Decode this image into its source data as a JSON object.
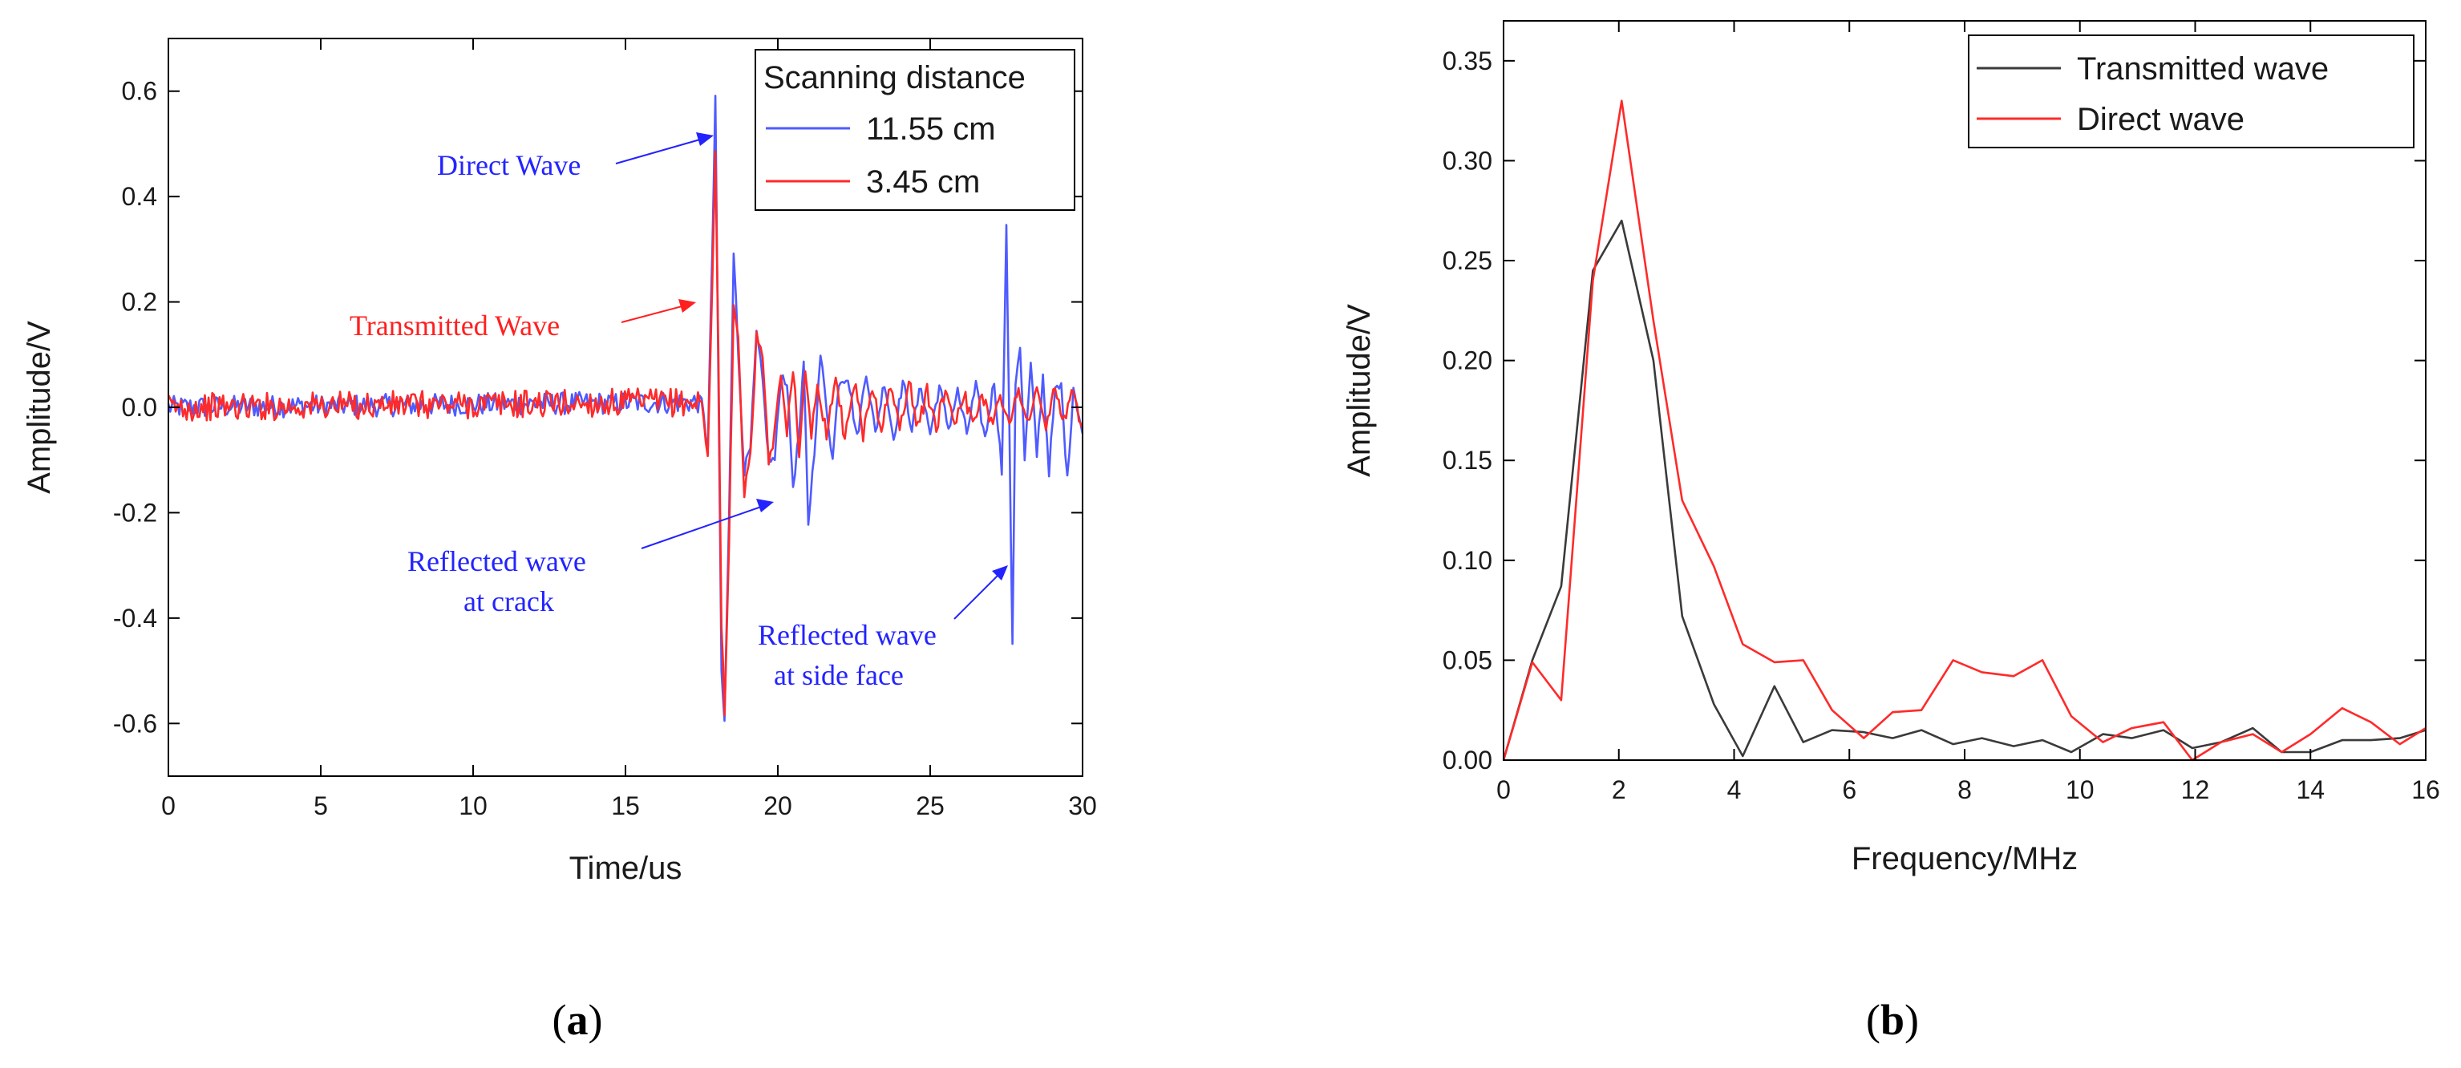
{
  "panels": {
    "a": {
      "label": "(a)",
      "label_open": "(",
      "label_letter": "a",
      "label_close": ")"
    },
    "b": {
      "label": "(b)",
      "label_open": "(",
      "label_letter": "b",
      "label_close": ")"
    }
  },
  "colors": {
    "blue": "#4f5bff",
    "red": "#ff2a2a",
    "dark": "#3a3a3a",
    "axis": "#000000",
    "annot_blue": "#2323ff",
    "annot_red": "#ff2020"
  },
  "chart_data": [
    {
      "id": "a",
      "type": "line",
      "title": "",
      "xlabel": "Time/us",
      "ylabel": "Amplitude/V",
      "xlim": [
        0,
        30
      ],
      "ylim": [
        -0.7,
        0.7
      ],
      "xticks": [
        0,
        5,
        10,
        15,
        20,
        25,
        30
      ],
      "xtick_labels": [
        "0",
        "5",
        "10",
        "15",
        "20",
        "25",
        "30"
      ],
      "yticks": [
        0.6,
        0.4,
        0.2,
        0.0,
        -0.2,
        -0.4,
        -0.6
      ],
      "ytick_labels": [
        "0.6",
        "0.4",
        "0.2",
        "0.0",
        "-0.2",
        "-0.4",
        "-0.6"
      ],
      "legend": {
        "title": "Scanning distance",
        "position": "top-right",
        "entries": [
          "11.55 cm",
          "3.45 cm"
        ]
      },
      "series": [
        {
          "name": "11.55 cm",
          "color": "#4f5bff",
          "noise_amplitude": 0.012,
          "x": [
            0,
            17.5,
            17.7,
            17.85,
            17.95,
            18.05,
            18.15,
            18.25,
            18.4,
            18.55,
            18.7,
            18.9,
            19.1,
            19.3,
            19.5,
            19.7,
            19.9,
            20.1,
            20.3,
            20.5,
            20.7,
            20.85,
            21.0,
            21.2,
            21.4,
            21.6,
            21.8,
            22.0,
            22.3,
            22.6,
            22.9,
            23.2,
            23.5,
            23.8,
            24.1,
            24.4,
            24.7,
            25.0,
            25.3,
            25.6,
            25.9,
            26.2,
            26.5,
            26.8,
            27.1,
            27.35,
            27.5,
            27.6,
            27.7,
            27.8,
            27.95,
            28.1,
            28.3,
            28.5,
            28.7,
            28.9,
            29.1,
            29.3,
            29.5,
            29.7,
            30
          ],
          "y": [
            0,
            0.01,
            -0.08,
            0.3,
            0.58,
            0.05,
            -0.5,
            -0.6,
            -0.2,
            0.3,
            0.1,
            -0.12,
            -0.08,
            0.14,
            0.05,
            -0.1,
            -0.1,
            0.06,
            0.05,
            -0.15,
            -0.05,
            0.08,
            -0.22,
            -0.08,
            0.1,
            0.0,
            -0.1,
            0.05,
            0.06,
            -0.06,
            0.07,
            -0.05,
            0.05,
            -0.06,
            0.05,
            -0.04,
            0.04,
            -0.05,
            0.04,
            -0.04,
            0.03,
            -0.05,
            0.04,
            -0.06,
            0.05,
            -0.12,
            0.34,
            -0.05,
            -0.46,
            0.05,
            0.12,
            -0.1,
            0.08,
            -0.09,
            0.06,
            -0.12,
            0.03,
            0.04,
            -0.14,
            0.04,
            -0.05
          ]
        },
        {
          "name": "3.45 cm",
          "color": "#ff2a2a",
          "noise_amplitude": 0.015,
          "x": [
            0,
            17.5,
            17.7,
            17.85,
            17.95,
            18.05,
            18.15,
            18.25,
            18.4,
            18.55,
            18.7,
            18.9,
            19.1,
            19.3,
            19.5,
            19.7,
            19.9,
            20.1,
            20.3,
            20.5,
            20.7,
            20.9,
            21.1,
            21.3,
            21.6,
            21.9,
            22.2,
            22.5,
            22.8,
            23.1,
            23.4,
            23.7,
            24.0,
            24.3,
            24.6,
            24.9,
            25.2,
            25.5,
            25.8,
            26.1,
            26.4,
            26.7,
            27.0,
            27.3,
            27.6,
            27.9,
            28.2,
            28.5,
            28.8,
            29.1,
            29.4,
            29.7,
            30
          ],
          "y": [
            0,
            0.01,
            -0.1,
            0.25,
            0.48,
            0.1,
            -0.42,
            -0.57,
            -0.25,
            0.2,
            0.12,
            -0.16,
            -0.1,
            0.14,
            0.08,
            -0.1,
            -0.05,
            0.06,
            -0.04,
            0.08,
            -0.08,
            0.06,
            -0.05,
            0.05,
            -0.05,
            0.06,
            -0.06,
            0.05,
            -0.05,
            0.04,
            -0.04,
            0.04,
            -0.04,
            0.05,
            -0.04,
            0.03,
            -0.04,
            0.04,
            -0.03,
            0.03,
            -0.04,
            0.03,
            -0.03,
            0.03,
            -0.04,
            0.04,
            -0.03,
            0.03,
            -0.04,
            0.04,
            -0.03,
            0.03,
            -0.04
          ]
        }
      ],
      "annotations": [
        {
          "text": "Direct Wave",
          "color": "blue"
        },
        {
          "text": "Transmitted Wave",
          "color": "red"
        },
        {
          "text_lines": [
            "Reflected wave",
            "at crack"
          ],
          "color": "blue"
        },
        {
          "text_lines": [
            "Reflected wave",
            "at side face"
          ],
          "color": "blue"
        }
      ]
    },
    {
      "id": "b",
      "type": "line",
      "title": "",
      "xlabel": "Frequency/MHz",
      "ylabel": "Amplitude/V",
      "xlim": [
        0,
        16
      ],
      "ylim": [
        0,
        0.37
      ],
      "xticks": [
        0,
        2,
        4,
        6,
        8,
        10,
        12,
        14,
        16
      ],
      "xtick_labels": [
        "0",
        "2",
        "4",
        "6",
        "8",
        "10",
        "12",
        "14",
        "16"
      ],
      "yticks": [
        0.0,
        0.05,
        0.1,
        0.15,
        0.2,
        0.25,
        0.3,
        0.35
      ],
      "ytick_labels": [
        "0.00",
        "0.05",
        "0.10",
        "0.15",
        "0.20",
        "0.25",
        "0.30",
        "0.35"
      ],
      "legend": {
        "position": "top-right",
        "entries": [
          "Transmitted wave",
          "Direct wave"
        ]
      },
      "series": [
        {
          "name": "Transmitted wave",
          "color": "#3a3a3a",
          "x": [
            0,
            0.5,
            1.0,
            1.55,
            2.05,
            2.6,
            3.1,
            3.65,
            4.15,
            4.7,
            5.2,
            5.7,
            6.25,
            6.75,
            7.25,
            7.8,
            8.3,
            8.85,
            9.35,
            9.85,
            10.4,
            10.9,
            11.45,
            11.95,
            12.45,
            13.0,
            13.5,
            14.0,
            14.55,
            15.05,
            15.55,
            16
          ],
          "y": [
            0,
            0.05,
            0.087,
            0.245,
            0.27,
            0.2,
            0.072,
            0.028,
            0.002,
            0.037,
            0.009,
            0.015,
            0.014,
            0.011,
            0.015,
            0.008,
            0.011,
            0.007,
            0.01,
            0.004,
            0.013,
            0.011,
            0.015,
            0.006,
            0.009,
            0.016,
            0.004,
            0.004,
            0.01,
            0.01,
            0.011,
            0.015
          ]
        },
        {
          "name": "Direct wave",
          "color": "#ff2a2a",
          "x": [
            0,
            0.5,
            1.0,
            1.55,
            2.05,
            2.6,
            3.1,
            3.65,
            4.15,
            4.7,
            5.2,
            5.7,
            6.25,
            6.75,
            7.25,
            7.8,
            8.3,
            8.85,
            9.35,
            9.85,
            10.4,
            10.9,
            11.45,
            11.95,
            12.45,
            13.0,
            13.5,
            14.0,
            14.55,
            15.05,
            15.55,
            16
          ],
          "y": [
            0,
            0.049,
            0.03,
            0.24,
            0.33,
            0.22,
            0.13,
            0.097,
            0.058,
            0.049,
            0.05,
            0.025,
            0.011,
            0.024,
            0.025,
            0.05,
            0.044,
            0.042,
            0.05,
            0.022,
            0.009,
            0.016,
            0.019,
            0.0,
            0.009,
            0.013,
            0.004,
            0.013,
            0.026,
            0.019,
            0.008,
            0.016
          ]
        }
      ]
    }
  ]
}
